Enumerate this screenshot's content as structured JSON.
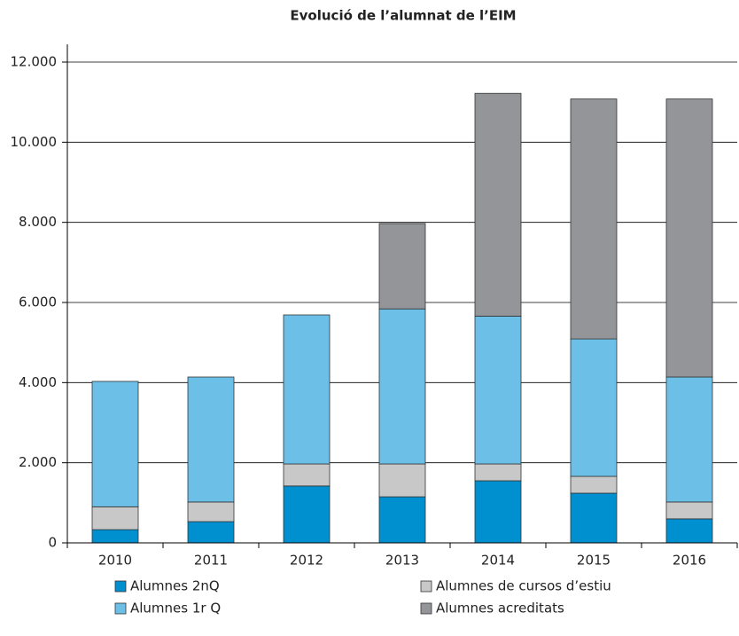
{
  "chart_data": {
    "type": "stacked_bar",
    "title": "Evolució de l’alumnat de l’EIM",
    "categories": [
      "2010",
      "2011",
      "2012",
      "2013",
      "2014",
      "2015",
      "2016"
    ],
    "series": [
      {
        "name": "Alumnes 2nQ",
        "color": "#0090cf",
        "values": [
          330,
          530,
          1420,
          1150,
          1550,
          1240,
          600
        ]
      },
      {
        "name": "Alumnes de cursos d’estiu",
        "color": "#c8c8c8",
        "values": [
          570,
          490,
          550,
          820,
          420,
          420,
          420
        ]
      },
      {
        "name": "Alumnes 1r Q",
        "color": "#6cc0e8",
        "values": [
          3130,
          3120,
          3720,
          3870,
          3690,
          3430,
          3120
        ]
      },
      {
        "name": "Alumnes acreditats",
        "color": "#939598",
        "values": [
          0,
          0,
          0,
          2130,
          5560,
          5990,
          6940
        ]
      }
    ],
    "ylim": [
      0,
      12000
    ],
    "yticks": [
      0,
      {
        "value": 2000,
        "label": "2.000"
      },
      {
        "value": 4000,
        "label": "4.000"
      },
      {
        "value": 6000,
        "label": "6.000"
      },
      {
        "value": 8000,
        "label": "8.000"
      },
      {
        "value": 10000,
        "label": "10.000"
      },
      {
        "value": 12000,
        "label": "12.000"
      }
    ],
    "grid": true
  }
}
